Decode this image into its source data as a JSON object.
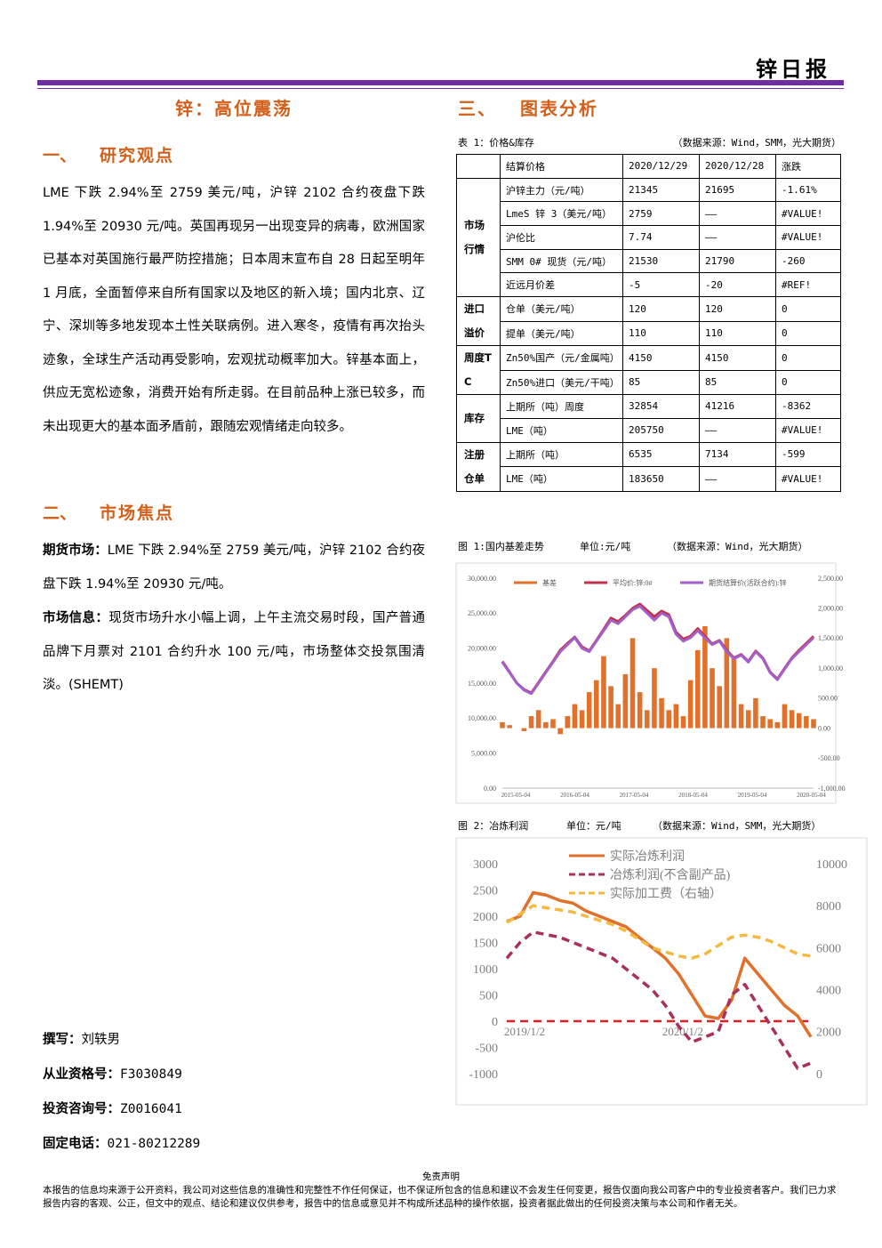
{
  "header": {
    "title": "锌日报"
  },
  "left": {
    "title": "锌：高位震荡",
    "section1": {
      "number": "一、",
      "heading": "研究观点",
      "text": "LME 下跌 2.94%至 2759 美元/吨，沪锌 2102 合约夜盘下跌 1.94%至 20930 元/吨。英国再现另一出现变异的病毒，欧洲国家已基本对英国施行最严防控措施；日本周末宣布自 28 日起至明年 1 月底，全面暂停来自所有国家以及地区的新入境；国内北京、辽宁、深圳等多地发现本土性关联病例。进入寒冬，疫情有再次抬头迹象，全球生产活动再受影响，宏观扰动概率加大。锌基本面上，供应无宽松迹象，消费开始有所走弱。在目前品种上涨已较多，而未出现更大的基本面矛盾前，跟随宏观情绪走向较多。"
    },
    "section2": {
      "number": "二、",
      "heading": "市场焦点",
      "items": [
        {
          "label": "期货市场：",
          "text": "LME 下跌 2.94%至 2759 美元/吨，沪锌 2102 合约夜盘下跌 1.94%至 20930 元/吨。"
        },
        {
          "label": "市场信息：",
          "text": "现货市场升水小幅上调，上午主流交易时段，国产普通品牌下月票对 2101 合约升水 100 元/吨，市场整体交投氛围清淡。(SHEMT)"
        }
      ]
    },
    "authors": [
      {
        "label": "撰写：",
        "value": "刘轶男"
      },
      {
        "label": "从业资格号：",
        "value": "F3030849"
      },
      {
        "label": "投资咨询号：",
        "value": "Z0016041"
      },
      {
        "label": "固定电话：",
        "value": "021-80212289"
      }
    ]
  },
  "right": {
    "heading": {
      "number": "三、",
      "text": "图表分析"
    },
    "table": {
      "caption": "表 1：价格&库存",
      "source": "（数据来源：Wind，SMM，光大期货）",
      "header": [
        "结算价格",
        "2020/12/29",
        "2020/12/28",
        "涨跌"
      ],
      "groups": [
        {
          "label": "市场行情",
          "rows": [
            [
              "沪锌主力（元/吨）",
              "21345",
              "21695",
              "-1.61%"
            ],
            [
              "LmeS 锌 3（美元/吨）",
              "2759",
              "——",
              "#VALUE!"
            ],
            [
              "沪伦比",
              "7.74",
              "——",
              "#VALUE!"
            ],
            [
              "SMM 0# 现货（元/吨）",
              "21530",
              "21790",
              "-260"
            ],
            [
              "近远月价差",
              "-5",
              "-20",
              "#REF!"
            ]
          ]
        },
        {
          "label": "进口溢价",
          "rows": [
            [
              "仓单（美元/吨）",
              "120",
              "120",
              "0"
            ],
            [
              "提单（美元/吨）",
              "110",
              "110",
              "0"
            ]
          ]
        },
        {
          "label": "周度TC",
          "rows": [
            [
              "Zn50%国产（元/金属吨）",
              "4150",
              "4150",
              "0"
            ],
            [
              "Zn50%进口（美元/干吨）",
              "85",
              "85",
              "0"
            ]
          ]
        },
        {
          "label": "库存",
          "rows": [
            [
              "上期所（吨）周度",
              "32854",
              "41216",
              "-8362"
            ],
            [
              "LME（吨）",
              "205750",
              "——",
              "#VALUE!"
            ]
          ]
        },
        {
          "label": "注册仓单",
          "rows": [
            [
              "上期所（吨）",
              "6535",
              "7134",
              "-599"
            ],
            [
              "LME（吨）",
              "183650",
              "——",
              "#VALUE!"
            ]
          ]
        }
      ]
    },
    "figures": [
      {
        "caption": "图 1:国内基差走势",
        "unit": "单位:元/吨",
        "source": "（数据来源：Wind，光大期货）",
        "chart": {
          "type": "bar-line",
          "x_labels": [
            "2015-05-04",
            "2016-05-04",
            "2017-05-04",
            "2018-05-04",
            "2019-05-04",
            "2020-05-04"
          ],
          "ylim": [
            0,
            30000
          ],
          "yticks": [
            {
              "value": 0,
              "label": "0.00"
            },
            {
              "value": 5000,
              "label": "5,000.00"
            },
            {
              "value": 10000,
              "label": "10,000.00"
            },
            {
              "value": 15000,
              "label": "15,000.00"
            },
            {
              "value": 20000,
              "label": "20,000.00"
            },
            {
              "value": 25000,
              "label": "25,000.00"
            },
            {
              "value": 30000,
              "label": "30,000.00"
            }
          ],
          "y2lim": [
            -1000,
            2500
          ],
          "y2ticks": [
            {
              "value": -1000,
              "label": "-1,000.00"
            },
            {
              "value": -500,
              "label": "-500.00"
            },
            {
              "value": 0,
              "label": "0.00"
            },
            {
              "value": 500,
              "label": "500.00"
            },
            {
              "value": 1000,
              "label": "1,000.00"
            },
            {
              "value": 1500,
              "label": "1,500.00"
            },
            {
              "value": 2000,
              "label": "2,000.00"
            },
            {
              "value": 2500,
              "label": "2,500.00"
            }
          ],
          "series": [
            {
              "name": "基差",
              "type": "bar",
              "axis": "y2",
              "color": "#e0702a",
              "values": [
                100,
                50,
                0,
                -50,
                200,
                300,
                100,
                150,
                -100,
                200,
                400,
                300,
                600,
                800,
                1200,
                700,
                400,
                900,
                1500,
                600,
                300,
                1000,
                500,
                300,
                400,
                200,
                800,
                1300,
                1700,
                1000,
                700,
                1500,
                1200,
                400,
                300,
                500,
                200,
                150,
                100,
                400,
                300,
                250,
                200,
                150
              ]
            },
            {
              "name": "平均价:锌:0#",
              "type": "line",
              "color": "#c0304a",
              "values": [
                18100,
                16600,
                15000,
                14100,
                13600,
                15100,
                16600,
                18100,
                19700,
                20700,
                21600,
                20200,
                19600,
                21100,
                22700,
                24300,
                23800,
                24700,
                25700,
                26300,
                25400,
                24500,
                25300,
                24800,
                22300,
                21300,
                21700,
                22800,
                21700,
                20600,
                21100,
                19700,
                18600,
                19100,
                18100,
                19600,
                18600,
                16600,
                15600,
                17100,
                18600,
                19700,
                20700,
                21700
              ]
            },
            {
              "name": "期货结算价(活跃合约):锌",
              "type": "line",
              "color": "#a260c8",
              "values": [
                18000,
                16500,
                15000,
                14000,
                13500,
                15000,
                16500,
                18000,
                19500,
                20500,
                21500,
                20000,
                19500,
                21000,
                22500,
                24000,
                23500,
                24500,
                25500,
                26000,
                25000,
                24000,
                25000,
                24500,
                22000,
                21000,
                21500,
                22500,
                21500,
                20500,
                21000,
                19500,
                18500,
                19000,
                18000,
                19500,
                18500,
                16500,
                15500,
                17000,
                18500,
                19500,
                20500,
                21500
              ]
            }
          ]
        }
      },
      {
        "caption": "图 2：冶炼利润",
        "unit": "单位：元/吨",
        "source": "（数据来源：Wind，SMM，光大期货）",
        "chart": {
          "type": "line",
          "x_labels": [
            "2019/1/2",
            "2020/1/2"
          ],
          "ylim": [
            -1000,
            3000
          ],
          "yticks": [
            -1000,
            -500,
            0,
            500,
            1000,
            1500,
            2000,
            2500,
            3000
          ],
          "y2lim": [
            0,
            10000
          ],
          "y2ticks": [
            0,
            2000,
            4000,
            6000,
            8000,
            10000
          ],
          "series": [
            {
              "name": "实际冶炼利润",
              "type": "line",
              "style": "solid",
              "color": "#e0702a",
              "values": [
                1900,
                2000,
                2450,
                2400,
                2300,
                2250,
                2100,
                2000,
                1900,
                1800,
                1600,
                1400,
                1200,
                900,
                500,
                100,
                50,
                400,
                1200,
                900,
                600,
                300,
                100,
                -300
              ]
            },
            {
              "name": "冶炼利润(不含副产品)",
              "type": "line",
              "style": "dashed",
              "color": "#a8305a",
              "values": [
                1200,
                1500,
                1700,
                1650,
                1600,
                1500,
                1400,
                1300,
                1200,
                1000,
                800,
                600,
                300,
                -100,
                -400,
                -300,
                -200,
                500,
                700,
                300,
                -100,
                -500,
                -900,
                -800
              ]
            },
            {
              "name": "实际加工费（右轴）",
              "type": "line",
              "style": "dashed",
              "axis": "y2",
              "color": "#f5b942",
              "values": [
                7200,
                7600,
                8000,
                7900,
                7800,
                7700,
                7500,
                7300,
                7100,
                6800,
                6400,
                6000,
                5800,
                5600,
                5500,
                5700,
                6100,
                6500,
                6600,
                6500,
                6300,
                6000,
                5700,
                5600
              ]
            }
          ]
        }
      }
    ]
  },
  "footer": {
    "title": "免责声明",
    "text": "本报告的信息均来源于公开资料，我公司对这些信息的准确性和完整性不作任何保证，也不保证所包含的信息和建议不会发生任何变更，报告仅面向我公司客户中的专业投资者客户。我们已力求报告内容的客观、公正，但文中的观点、结论和建议仅供参考，报告中的信息或意见并不构成所述品种的操作依据，投资者据此做出的任何投资决策与本公司和作者无关。"
  }
}
